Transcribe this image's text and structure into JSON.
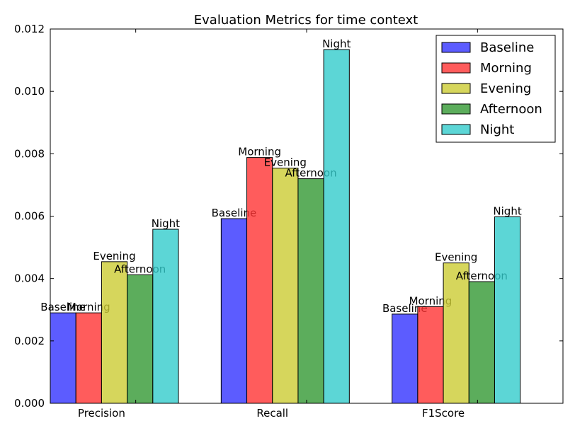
{
  "chart_data": {
    "type": "bar",
    "title": "Evaluation Metrics for time context",
    "xlabel": "",
    "ylabel": "",
    "categories": [
      "Precision",
      "Recall",
      "F1Score"
    ],
    "ylim": [
      0,
      0.012
    ],
    "yticks": [
      "0.000",
      "0.002",
      "0.004",
      "0.006",
      "0.008",
      "0.010",
      "0.012"
    ],
    "ytick_values": [
      0,
      0.002,
      0.004,
      0.006,
      0.008,
      0.01,
      0.012
    ],
    "legend_position": "top-right",
    "grid": false,
    "series": [
      {
        "name": "Baseline",
        "color": "#3333ff",
        "values": [
          0.0029,
          0.00592,
          0.00286
        ]
      },
      {
        "name": "Morning",
        "color": "#ff3333",
        "values": [
          0.0029,
          0.00788,
          0.0031
        ]
      },
      {
        "name": "Evening",
        "color": "#cccc33",
        "values": [
          0.00454,
          0.00754,
          0.0045
        ]
      },
      {
        "name": "Afternoon",
        "color": "#339933",
        "values": [
          0.00412,
          0.0072,
          0.0039
        ]
      },
      {
        "name": "Night",
        "color": "#33cccc",
        "values": [
          0.00558,
          0.01134,
          0.00598
        ]
      }
    ]
  }
}
